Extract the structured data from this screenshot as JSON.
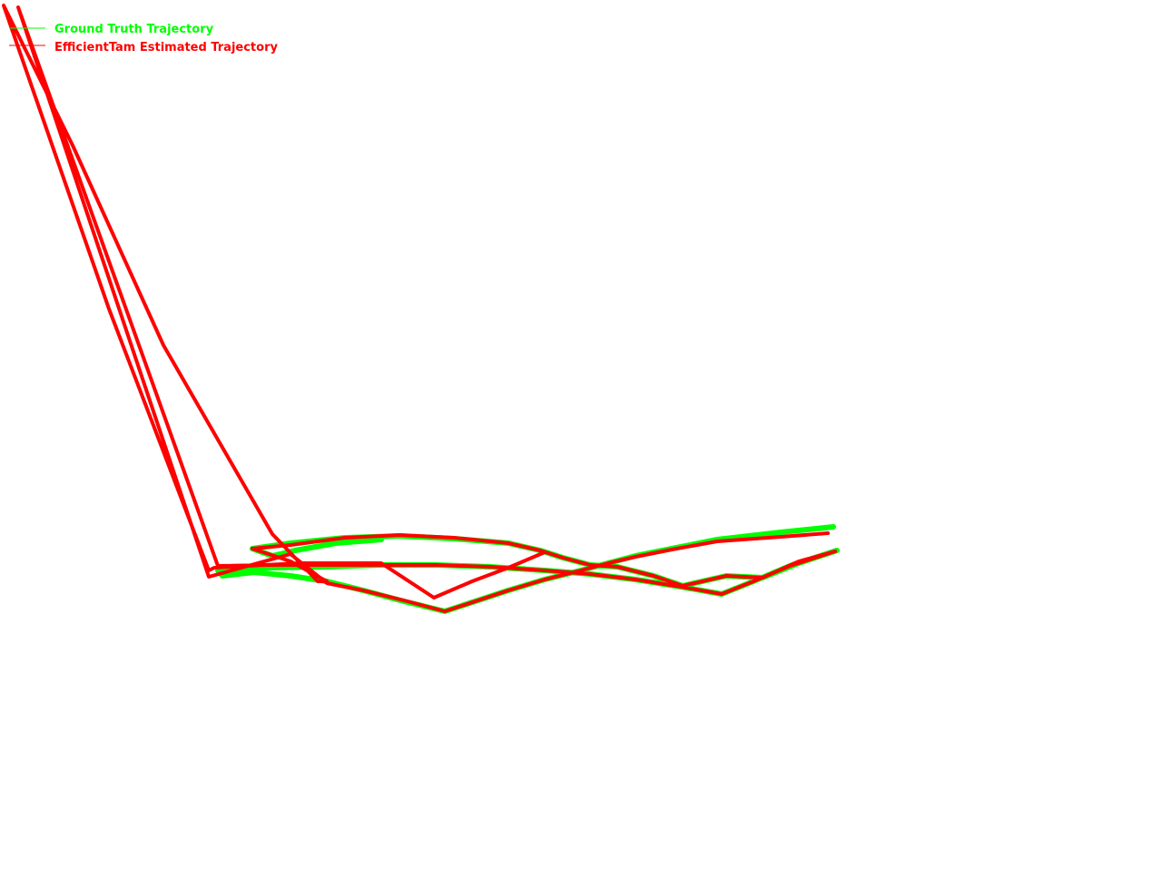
{
  "chart_data": {
    "type": "line",
    "title": "",
    "xlabel": "",
    "ylabel": "",
    "grid": false,
    "legend_position": "top-left",
    "series": [
      {
        "name": "Ground Truth Trajectory",
        "color": "#00ff00",
        "points": [
          [
            918,
            580
          ],
          [
            860,
            586
          ],
          [
            790,
            594
          ],
          [
            740,
            604
          ],
          [
            700,
            612
          ],
          [
            670,
            620
          ],
          [
            640,
            628
          ],
          [
            600,
            638
          ],
          [
            560,
            650
          ],
          [
            490,
            673
          ],
          [
            445,
            662
          ],
          [
            400,
            650
          ],
          [
            360,
            640
          ],
          [
            320,
            634
          ],
          [
            280,
            630
          ],
          [
            245,
            634
          ],
          [
            240,
            628
          ],
          [
            300,
            625
          ],
          [
            360,
            624
          ],
          [
            420,
            622
          ],
          [
            480,
            622
          ],
          [
            540,
            624
          ],
          [
            600,
            628
          ],
          [
            650,
            632
          ],
          [
            700,
            638
          ],
          [
            750,
            646
          ],
          [
            795,
            654
          ],
          [
            830,
            640
          ],
          [
            870,
            623
          ],
          [
            922,
            606
          ],
          [
            880,
            620
          ],
          [
            840,
            636
          ],
          [
            800,
            634
          ],
          [
            752,
            645
          ],
          [
            720,
            634
          ],
          [
            680,
            624
          ],
          [
            650,
            622
          ],
          [
            620,
            614
          ],
          [
            595,
            606
          ],
          [
            560,
            598
          ],
          [
            500,
            593
          ],
          [
            440,
            590
          ],
          [
            380,
            592
          ],
          [
            320,
            598
          ],
          [
            278,
            604
          ],
          [
            300,
            612
          ],
          [
            325,
            606
          ],
          [
            370,
            598
          ],
          [
            420,
            594
          ]
        ]
      },
      {
        "name": "EfficientTam Estimated Trajectory",
        "color": "#ff0000",
        "points": [
          [
            912,
            587
          ],
          [
            860,
            591
          ],
          [
            790,
            596
          ],
          [
            740,
            605
          ],
          [
            700,
            613
          ],
          [
            670,
            620
          ],
          [
            640,
            628
          ],
          [
            600,
            638
          ],
          [
            560,
            650
          ],
          [
            490,
            673
          ],
          [
            445,
            661
          ],
          [
            400,
            650
          ],
          [
            360,
            642
          ],
          [
            320,
            610
          ],
          [
            230,
            635
          ],
          [
            20,
            8
          ],
          [
            240,
            623
          ],
          [
            300,
            622
          ],
          [
            360,
            622
          ],
          [
            420,
            622
          ],
          [
            480,
            622
          ],
          [
            540,
            624
          ],
          [
            600,
            628
          ],
          [
            650,
            632
          ],
          [
            700,
            638
          ],
          [
            750,
            646
          ],
          [
            795,
            654
          ],
          [
            830,
            640
          ],
          [
            870,
            623
          ],
          [
            920,
            607
          ],
          [
            880,
            618
          ],
          [
            840,
            636
          ],
          [
            800,
            634
          ],
          [
            752,
            645
          ],
          [
            720,
            634
          ],
          [
            680,
            624
          ],
          [
            650,
            622
          ],
          [
            620,
            614
          ],
          [
            595,
            606
          ],
          [
            560,
            598
          ],
          [
            500,
            592
          ],
          [
            440,
            589
          ],
          [
            380,
            592
          ],
          [
            320,
            600
          ],
          [
            278,
            604
          ],
          [
            320,
            618
          ],
          [
            360,
            640
          ],
          [
            350,
            640
          ],
          [
            300,
            588
          ],
          [
            180,
            380
          ],
          [
            80,
            160
          ],
          [
            4,
            6
          ],
          [
            120,
            340
          ],
          [
            230,
            628
          ],
          [
            236,
            625
          ],
          [
            330,
            620
          ],
          [
            420,
            620
          ],
          [
            478,
            658
          ],
          [
            520,
            640
          ],
          [
            560,
            625
          ],
          [
            600,
            608
          ]
        ]
      }
    ]
  },
  "legend": {
    "items": [
      {
        "label": "Ground Truth Trajectory",
        "color": "#00ff00"
      },
      {
        "label": "EfficientTam Estimated Trajectory",
        "color": "#ff0000"
      }
    ]
  }
}
